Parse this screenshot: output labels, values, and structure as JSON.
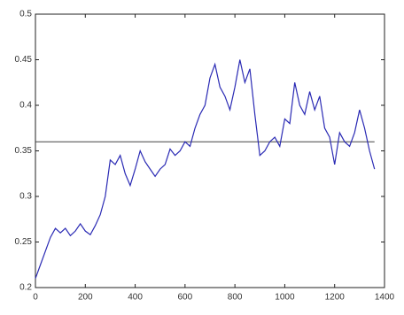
{
  "chart_data": {
    "type": "line",
    "x": [
      0,
      20,
      40,
      60,
      80,
      100,
      120,
      140,
      160,
      180,
      200,
      220,
      240,
      260,
      280,
      300,
      320,
      340,
      360,
      380,
      400,
      420,
      440,
      460,
      480,
      500,
      520,
      540,
      560,
      580,
      600,
      620,
      640,
      660,
      680,
      700,
      720,
      740,
      760,
      780,
      800,
      820,
      840,
      860,
      880,
      900,
      920,
      940,
      960,
      980,
      1000,
      1020,
      1040,
      1060,
      1080,
      1100,
      1120,
      1140,
      1160,
      1180,
      1200,
      1220,
      1240,
      1260,
      1280,
      1300,
      1320,
      1340,
      1360
    ],
    "series": [
      {
        "color": "#2a2ab4",
        "values": [
          0.21,
          0.225,
          0.24,
          0.255,
          0.265,
          0.26,
          0.265,
          0.257,
          0.262,
          0.27,
          0.262,
          0.258,
          0.268,
          0.28,
          0.3,
          0.34,
          0.335,
          0.345,
          0.325,
          0.312,
          0.33,
          0.35,
          0.338,
          0.33,
          0.322,
          0.33,
          0.335,
          0.352,
          0.345,
          0.35,
          0.36,
          0.355,
          0.375,
          0.39,
          0.4,
          0.43,
          0.445,
          0.42,
          0.41,
          0.395,
          0.42,
          0.45,
          0.425,
          0.44,
          0.39,
          0.345,
          0.35,
          0.36,
          0.365,
          0.355,
          0.385,
          0.38,
          0.425,
          0.4,
          0.39,
          0.415,
          0.395,
          0.41,
          0.375,
          0.365,
          0.335,
          0.37,
          0.36,
          0.355,
          0.37,
          0.395,
          0.375,
          0.35,
          0.33
        ]
      }
    ],
    "hline": {
      "value": 0.36,
      "color": "#444444"
    },
    "xlim": [
      0,
      1400
    ],
    "xticks": [
      0,
      200,
      400,
      600,
      800,
      1000,
      1200,
      1400
    ],
    "ylim": [
      0.2,
      0.5
    ],
    "yticks": [
      0.2,
      0.25,
      0.3,
      0.35,
      0.4,
      0.45,
      0.5
    ]
  }
}
